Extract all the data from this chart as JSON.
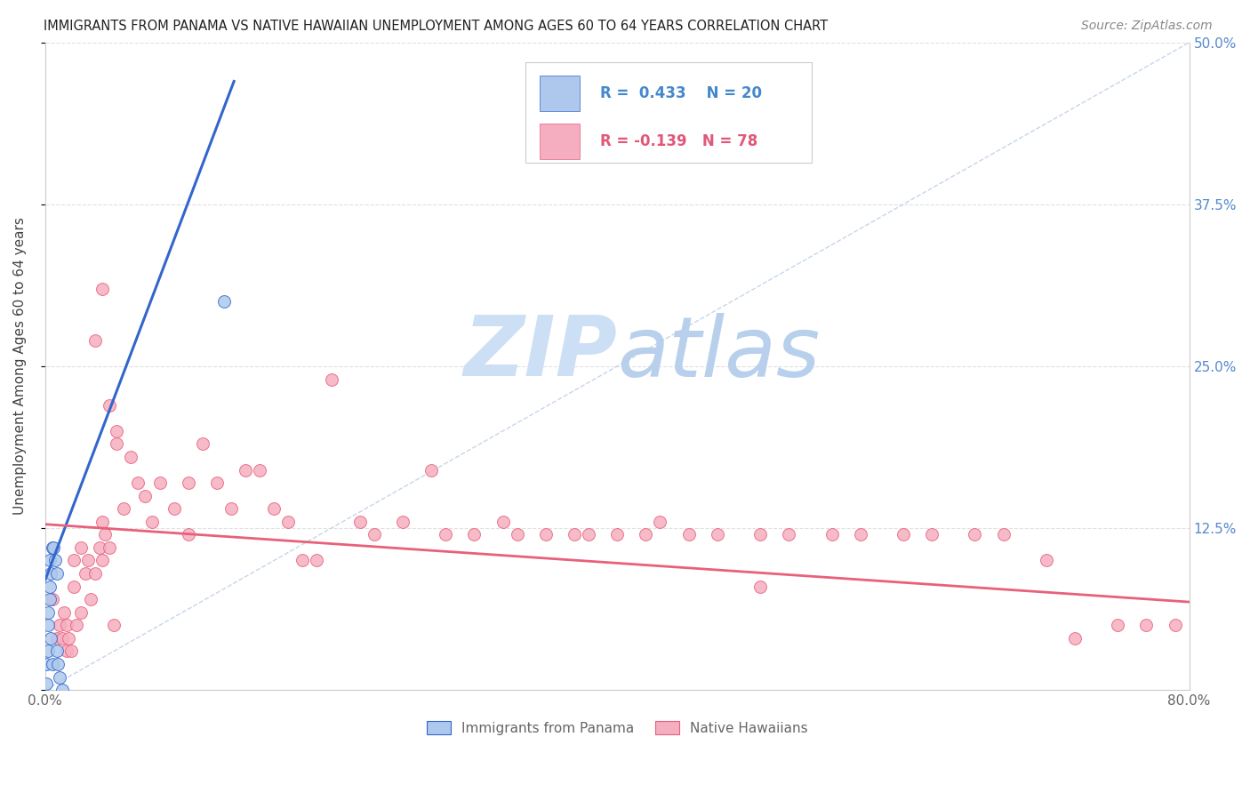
{
  "title": "IMMIGRANTS FROM PANAMA VS NATIVE HAWAIIAN UNEMPLOYMENT AMONG AGES 60 TO 64 YEARS CORRELATION CHART",
  "source": "Source: ZipAtlas.com",
  "ylabel": "Unemployment Among Ages 60 to 64 years",
  "xlim": [
    0,
    0.8
  ],
  "ylim": [
    0,
    0.5
  ],
  "R_blue": 0.433,
  "N_blue": 20,
  "R_pink": -0.139,
  "N_pink": 78,
  "blue_color": "#adc8ec",
  "pink_color": "#f5aec0",
  "blue_line_color": "#3366cc",
  "pink_line_color": "#e8607a",
  "legend_blue_label": "Immigrants from Panama",
  "legend_pink_label": "Native Hawaiians",
  "blue_scatter_x": [
    0.001,
    0.001,
    0.002,
    0.002,
    0.002,
    0.003,
    0.003,
    0.003,
    0.004,
    0.004,
    0.005,
    0.005,
    0.006,
    0.007,
    0.008,
    0.008,
    0.009,
    0.01,
    0.012,
    0.125
  ],
  "blue_scatter_y": [
    0.005,
    0.02,
    0.03,
    0.05,
    0.06,
    0.07,
    0.08,
    0.1,
    0.04,
    0.09,
    0.02,
    0.11,
    0.11,
    0.1,
    0.09,
    0.03,
    0.02,
    0.01,
    0.0,
    0.3
  ],
  "pink_scatter_x": [
    0.005,
    0.008,
    0.01,
    0.012,
    0.013,
    0.015,
    0.015,
    0.016,
    0.018,
    0.02,
    0.02,
    0.022,
    0.025,
    0.025,
    0.028,
    0.03,
    0.032,
    0.035,
    0.038,
    0.04,
    0.04,
    0.042,
    0.045,
    0.048,
    0.05,
    0.055,
    0.06,
    0.065,
    0.07,
    0.075,
    0.08,
    0.09,
    0.1,
    0.1,
    0.11,
    0.12,
    0.13,
    0.14,
    0.15,
    0.16,
    0.17,
    0.18,
    0.19,
    0.2,
    0.22,
    0.23,
    0.25,
    0.27,
    0.28,
    0.3,
    0.32,
    0.33,
    0.35,
    0.37,
    0.38,
    0.4,
    0.42,
    0.43,
    0.45,
    0.47,
    0.5,
    0.52,
    0.55,
    0.57,
    0.6,
    0.62,
    0.65,
    0.67,
    0.7,
    0.72,
    0.75,
    0.77,
    0.79,
    0.035,
    0.04,
    0.045,
    0.05,
    0.5
  ],
  "pink_scatter_y": [
    0.07,
    0.04,
    0.05,
    0.04,
    0.06,
    0.03,
    0.05,
    0.04,
    0.03,
    0.08,
    0.1,
    0.05,
    0.11,
    0.06,
    0.09,
    0.1,
    0.07,
    0.09,
    0.11,
    0.13,
    0.1,
    0.12,
    0.11,
    0.05,
    0.19,
    0.14,
    0.18,
    0.16,
    0.15,
    0.13,
    0.16,
    0.14,
    0.16,
    0.12,
    0.19,
    0.16,
    0.14,
    0.17,
    0.17,
    0.14,
    0.13,
    0.1,
    0.1,
    0.24,
    0.13,
    0.12,
    0.13,
    0.17,
    0.12,
    0.12,
    0.13,
    0.12,
    0.12,
    0.12,
    0.12,
    0.12,
    0.12,
    0.13,
    0.12,
    0.12,
    0.12,
    0.12,
    0.12,
    0.12,
    0.12,
    0.12,
    0.12,
    0.12,
    0.1,
    0.04,
    0.05,
    0.05,
    0.05,
    0.27,
    0.31,
    0.22,
    0.2,
    0.08
  ],
  "blue_trend_x": [
    0.0,
    0.132
  ],
  "blue_trend_y": [
    0.085,
    0.47
  ],
  "pink_trend_x": [
    0.0,
    0.8
  ],
  "pink_trend_y": [
    0.128,
    0.068
  ],
  "diag_color": "#b8cce4",
  "background_color": "#ffffff",
  "grid_color": "#e0e0e0"
}
